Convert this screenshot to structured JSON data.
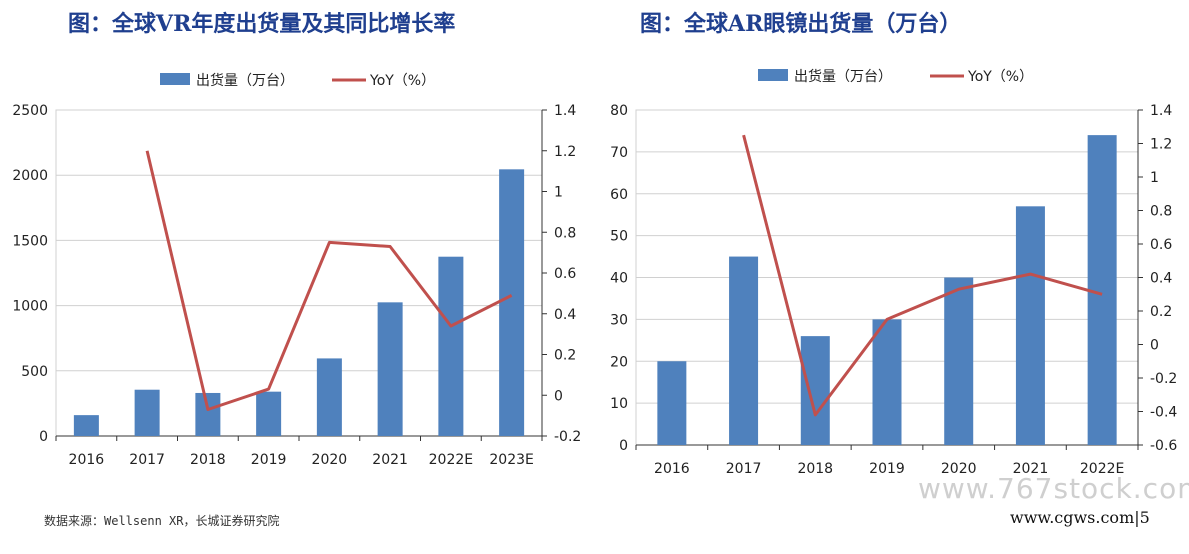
{
  "titles": {
    "left": "图：全球VR年度出货量及其同比增长率",
    "right": "图：全球AR眼镜出货量（万台）"
  },
  "source": "数据来源：Wellsenn XR，长城证券研究院",
  "website": "www.cgws.com|5",
  "watermark": "www.767stock.com",
  "colors": {
    "bar": "#4f81bd",
    "line": "#c0504d",
    "title": "#1f3f8f"
  },
  "chart_data": [
    {
      "type": "bar",
      "categories": [
        "2016",
        "2017",
        "2018",
        "2019",
        "2020",
        "2021",
        "2022E",
        "2023E"
      ],
      "series": [
        {
          "name": "出货量（万台）",
          "axis": "left",
          "type": "bar",
          "values": [
            160,
            355,
            330,
            340,
            595,
            1025,
            1375,
            2045
          ]
        },
        {
          "name": "YoY（%）",
          "axis": "right",
          "type": "line",
          "values": [
            null,
            1.2,
            -0.07,
            0.03,
            0.75,
            0.73,
            0.34,
            0.49
          ]
        }
      ],
      "ylim_left": [
        0,
        2500
      ],
      "yticks_left": [
        0,
        500,
        1000,
        1500,
        2000,
        2500
      ],
      "ylim_right": [
        -0.2,
        1.4
      ],
      "yticks_right": [
        "-0.2",
        "0",
        "0.2",
        "0.4",
        "0.6",
        "0.8",
        "1",
        "1.2",
        "1.4"
      ],
      "legend": "top"
    },
    {
      "type": "bar",
      "categories": [
        "2016",
        "2017",
        "2018",
        "2019",
        "2020",
        "2021",
        "2022E"
      ],
      "series": [
        {
          "name": "出货量（万台）",
          "axis": "left",
          "type": "bar",
          "values": [
            20,
            45,
            26,
            30,
            40,
            57,
            74
          ]
        },
        {
          "name": "YoY（%）",
          "axis": "right",
          "type": "line",
          "values": [
            null,
            1.25,
            -0.42,
            0.15,
            0.33,
            0.42,
            0.3
          ]
        }
      ],
      "ylim_left": [
        0,
        80
      ],
      "yticks_left": [
        0,
        10,
        20,
        30,
        40,
        50,
        60,
        70,
        80
      ],
      "ylim_right": [
        -0.6,
        1.4
      ],
      "yticks_right": [
        "-0.6",
        "-0.4",
        "-0.2",
        "0",
        "0.2",
        "0.4",
        "0.6",
        "0.8",
        "1",
        "1.2",
        "1.4"
      ],
      "legend": "top"
    }
  ]
}
